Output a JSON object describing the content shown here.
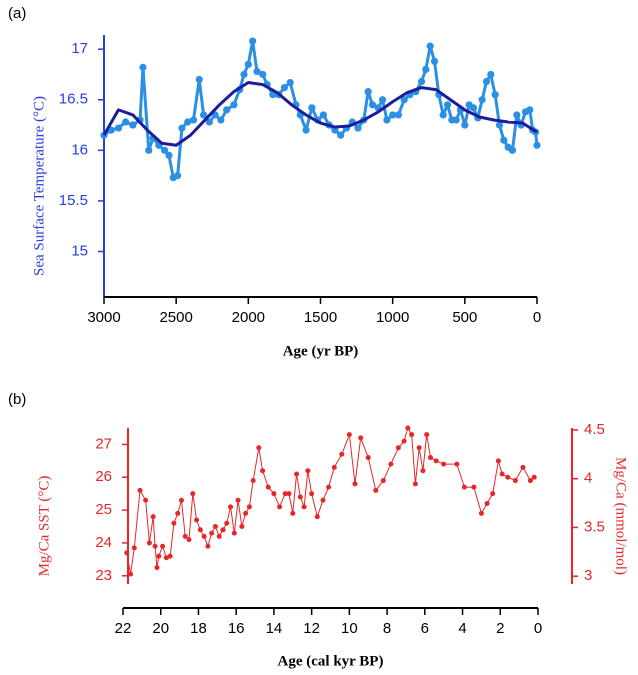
{
  "chart_data": [
    {
      "type": "line",
      "panel_label": "(a)",
      "x_label": "Age (yr BP)",
      "y_label": "Sea Surface Temperature (°C)",
      "xlim": [
        3000,
        0
      ],
      "xticks": [
        3000,
        2500,
        2000,
        1500,
        1000,
        500,
        0
      ],
      "ylim": [
        14.55,
        17.14
      ],
      "yticks": [
        15,
        15.5,
        16,
        16.5,
        17
      ],
      "axis_color": "#2a3de0",
      "series": [
        {
          "color": "#2b8fe3",
          "markers": true,
          "x": [
            3000,
            2950,
            2900,
            2850,
            2800,
            2750,
            2730,
            2690,
            2660,
            2620,
            2580,
            2550,
            2520,
            2490,
            2460,
            2420,
            2380,
            2340,
            2310,
            2270,
            2230,
            2190,
            2150,
            2100,
            2060,
            2030,
            2000,
            1970,
            1940,
            1900,
            1870,
            1830,
            1790,
            1750,
            1710,
            1670,
            1640,
            1600,
            1560,
            1520,
            1480,
            1440,
            1400,
            1360,
            1320,
            1280,
            1240,
            1200,
            1170,
            1140,
            1100,
            1070,
            1040,
            1000,
            960,
            920,
            880,
            840,
            800,
            770,
            740,
            710,
            680,
            650,
            620,
            590,
            560,
            530,
            500,
            470,
            440,
            410,
            380,
            350,
            320,
            290,
            260,
            230,
            200,
            170,
            140,
            110,
            80,
            50,
            30,
            10,
            0
          ],
          "values": [
            16.15,
            16.2,
            16.22,
            16.28,
            16.25,
            16.3,
            16.82,
            16.0,
            16.12,
            16.05,
            16.0,
            15.95,
            15.73,
            15.75,
            16.22,
            16.28,
            16.3,
            16.7,
            16.35,
            16.28,
            16.35,
            16.3,
            16.4,
            16.45,
            16.6,
            16.75,
            16.85,
            17.08,
            16.78,
            16.75,
            16.65,
            16.55,
            16.55,
            16.62,
            16.67,
            16.45,
            16.35,
            16.2,
            16.42,
            16.3,
            16.35,
            16.25,
            16.2,
            16.15,
            16.22,
            16.28,
            16.22,
            16.3,
            16.58,
            16.45,
            16.42,
            16.5,
            16.3,
            16.35,
            16.35,
            16.5,
            16.55,
            16.58,
            16.68,
            16.8,
            17.03,
            16.88,
            16.55,
            16.35,
            16.45,
            16.3,
            16.3,
            16.4,
            16.25,
            16.45,
            16.42,
            16.32,
            16.5,
            16.68,
            16.75,
            16.55,
            16.25,
            16.1,
            16.03,
            16.0,
            16.35,
            16.25,
            16.38,
            16.4,
            16.2,
            16.18,
            16.05
          ]
        },
        {
          "color": "#1c1c9e",
          "markers": false,
          "x": [
            3000,
            2900,
            2800,
            2700,
            2600,
            2500,
            2400,
            2300,
            2200,
            2100,
            2000,
            1900,
            1800,
            1700,
            1600,
            1500,
            1400,
            1300,
            1200,
            1100,
            1000,
            900,
            800,
            700,
            600,
            500,
            400,
            300,
            200,
            100,
            0
          ],
          "values": [
            16.15,
            16.4,
            16.35,
            16.2,
            16.07,
            16.05,
            16.15,
            16.3,
            16.45,
            16.58,
            16.67,
            16.65,
            16.57,
            16.45,
            16.35,
            16.27,
            16.23,
            16.24,
            16.3,
            16.38,
            16.48,
            16.57,
            16.62,
            16.6,
            16.5,
            16.4,
            16.33,
            16.3,
            16.28,
            16.27,
            16.18
          ]
        }
      ]
    },
    {
      "type": "line",
      "panel_label": "(b)",
      "x_label": "Age (cal kyr BP)",
      "y_label": "Mg/Ca SST (°C)",
      "y2_label": "Mg/Ca (mmol/mol)",
      "xlim": [
        22,
        0
      ],
      "xticks": [
        22,
        20,
        18,
        16,
        14,
        12,
        10,
        8,
        6,
        4,
        2,
        0
      ],
      "ylim": [
        22.75,
        27.5
      ],
      "yticks": [
        23,
        24,
        25,
        26,
        27
      ],
      "y2lim": [
        2.92,
        4.52
      ],
      "y2ticks": [
        3,
        3.5,
        4,
        4.5
      ],
      "axis_color": "#e8262a",
      "series": [
        {
          "color": "#e8262a",
          "markers": true,
          "x": [
            21.8,
            21.6,
            21.4,
            21.1,
            20.8,
            20.6,
            20.4,
            20.3,
            20.2,
            20.1,
            19.9,
            19.7,
            19.5,
            19.3,
            19.1,
            18.9,
            18.7,
            18.5,
            18.3,
            18.1,
            17.9,
            17.7,
            17.5,
            17.3,
            17.1,
            16.9,
            16.7,
            16.5,
            16.3,
            16.1,
            15.9,
            15.7,
            15.5,
            15.3,
            15.1,
            14.8,
            14.6,
            14.3,
            14.0,
            13.7,
            13.4,
            13.2,
            13.0,
            12.8,
            12.6,
            12.4,
            12.2,
            12.0,
            11.7,
            11.4,
            11.1,
            10.8,
            10.4,
            10.0,
            9.7,
            9.4,
            9.0,
            8.6,
            8.2,
            7.8,
            7.4,
            7.1,
            6.9,
            6.7,
            6.5,
            6.3,
            6.1,
            5.9,
            5.7,
            5.4,
            5.0,
            4.3,
            3.9,
            3.4,
            3.0,
            2.7,
            2.4,
            2.1,
            1.9,
            1.6,
            1.2,
            0.8,
            0.4,
            0.2
          ],
          "values": [
            23.7,
            23.05,
            23.85,
            25.6,
            25.3,
            24.0,
            24.8,
            23.9,
            23.25,
            23.6,
            23.9,
            23.55,
            23.6,
            24.6,
            24.9,
            25.3,
            24.2,
            24.1,
            25.5,
            24.7,
            24.4,
            24.2,
            23.9,
            24.3,
            24.5,
            24.2,
            24.4,
            24.6,
            25.1,
            24.3,
            25.3,
            24.5,
            24.9,
            25.1,
            25.9,
            26.9,
            26.2,
            25.7,
            25.5,
            25.1,
            25.5,
            25.5,
            24.9,
            26.1,
            25.4,
            25.1,
            26.2,
            25.5,
            24.8,
            25.3,
            25.7,
            26.3,
            26.7,
            27.3,
            25.8,
            27.2,
            26.6,
            25.6,
            25.9,
            26.4,
            26.9,
            27.1,
            27.5,
            27.3,
            25.8,
            26.9,
            26.2,
            27.3,
            26.6,
            26.5,
            26.4,
            26.4,
            25.7,
            25.7,
            24.9,
            25.2,
            25.5,
            26.5,
            26.1,
            26.0,
            25.9,
            26.3,
            25.9,
            26.0
          ]
        }
      ]
    }
  ]
}
